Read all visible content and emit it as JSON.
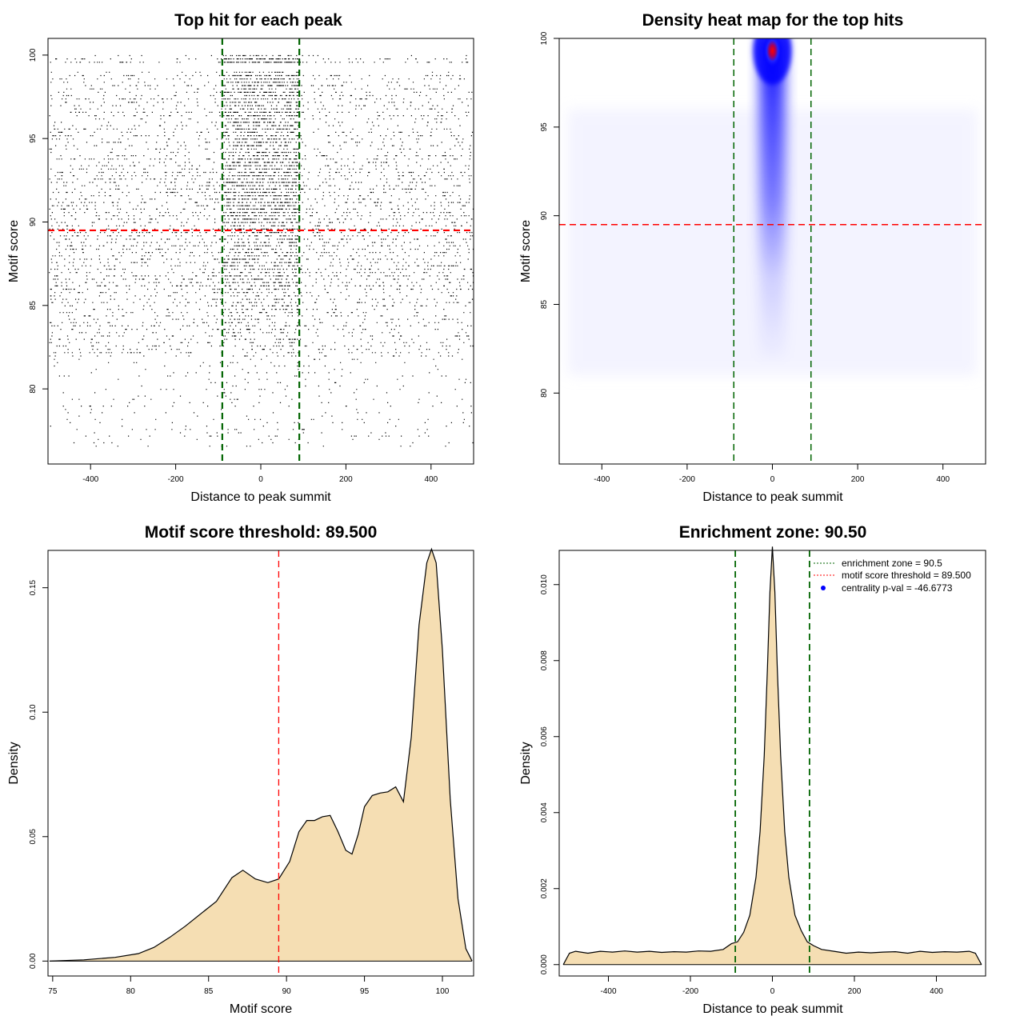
{
  "chart_data": [
    {
      "type": "scatter",
      "title": "Top hit for each peak",
      "xlabel": "Distance to peak summit",
      "ylabel": "Motif score",
      "xlim": [
        -500,
        500
      ],
      "ylim": [
        75.5,
        101
      ],
      "xticks": [
        -400,
        -200,
        0,
        200,
        400
      ],
      "yticks": [
        80,
        85,
        90,
        95,
        100
      ],
      "hlines": [
        {
          "y": 89.5,
          "color": "#ff0000",
          "style": "dashed"
        }
      ],
      "vlines": [
        {
          "x": -90.5,
          "color": "#006400",
          "style": "dashed"
        },
        {
          "x": 90.5,
          "color": "#006400",
          "style": "dashed"
        }
      ],
      "point_density_profile": {
        "score_bands": [
          {
            "range": [
              99.5,
              100
            ],
            "weight": 1.0,
            "central_share": 0.55
          },
          {
            "range": [
              97.5,
              99
            ],
            "weight": 0.8,
            "central_share": 0.5
          },
          {
            "range": [
              94,
              97.5
            ],
            "weight": 0.7,
            "central_share": 0.45
          },
          {
            "range": [
              90,
              94
            ],
            "weight": 0.9,
            "central_share": 0.4
          },
          {
            "range": [
              86,
              90
            ],
            "weight": 0.85,
            "central_share": 0.25
          },
          {
            "range": [
              82,
              86
            ],
            "weight": 0.5,
            "central_share": 0.15
          },
          {
            "range": [
              76.5,
              82
            ],
            "weight": 0.12,
            "central_share": 0.1
          }
        ]
      },
      "point_count": 8000
    },
    {
      "type": "heatmap",
      "title": "Density heat map for the top hits",
      "xlabel": "Distance to peak summit",
      "ylabel": "Motif score",
      "xlim": [
        -500,
        500
      ],
      "ylim": [
        76,
        100
      ],
      "xticks": [
        -400,
        -200,
        0,
        200,
        400
      ],
      "yticks": [
        80,
        85,
        90,
        95,
        100
      ],
      "hlines": [
        {
          "y": 89.5,
          "color": "#ff0000",
          "style": "dashed"
        }
      ],
      "vlines": [
        {
          "x": -90.5,
          "color": "#006400",
          "style": "dashed"
        },
        {
          "x": 90.5,
          "color": "#006400",
          "style": "dashed"
        }
      ],
      "hotspot": {
        "x": 0,
        "y": 99.3,
        "color": "#ff0000"
      },
      "colors": [
        "#ffffff",
        "#0000ff",
        "#ff0000"
      ]
    },
    {
      "type": "area",
      "title": "Motif score threshold: 89.500",
      "xlabel": "Motif score",
      "ylabel": "Density",
      "xlim": [
        74.7,
        102
      ],
      "ylim": [
        -0.006,
        0.165
      ],
      "xticks": [
        75,
        80,
        85,
        90,
        95,
        100
      ],
      "yticks": [
        0.0,
        0.05,
        0.1,
        0.15
      ],
      "ytick_labels": [
        "0.00",
        "0.05",
        "0.10",
        "0.15"
      ],
      "fill": "#f5deb3",
      "vlines": [
        {
          "x": 89.5,
          "color": "#ff0000",
          "style": "dashed"
        }
      ],
      "x": [
        74.8,
        77,
        79,
        80.5,
        81.5,
        82.5,
        83.5,
        84.5,
        85.5,
        86.5,
        87.2,
        88,
        88.8,
        89.5,
        90.2,
        90.8,
        91.3,
        91.8,
        92.3,
        92.8,
        93.3,
        93.8,
        94.2,
        94.6,
        95,
        95.5,
        96,
        96.5,
        97,
        97.5,
        98,
        98.5,
        99,
        99.3,
        99.6,
        100,
        100.5,
        101,
        101.5,
        101.9
      ],
      "y": [
        0.0,
        0.0005,
        0.0015,
        0.003,
        0.0055,
        0.0095,
        0.014,
        0.019,
        0.024,
        0.0335,
        0.0365,
        0.033,
        0.0315,
        0.033,
        0.04,
        0.052,
        0.0565,
        0.0565,
        0.058,
        0.0585,
        0.052,
        0.0445,
        0.043,
        0.051,
        0.062,
        0.0665,
        0.0675,
        0.068,
        0.07,
        0.064,
        0.09,
        0.135,
        0.16,
        0.1655,
        0.16,
        0.125,
        0.065,
        0.025,
        0.005,
        0.0
      ]
    },
    {
      "type": "area",
      "title": "Enrichment zone: 90.50",
      "xlabel": "Distance to peak summit",
      "ylabel": "Density",
      "xlim": [
        -520,
        520
      ],
      "ylim": [
        -0.0003,
        0.0109
      ],
      "xticks": [
        -400,
        -200,
        0,
        200,
        400
      ],
      "yticks": [
        0.0,
        0.002,
        0.004,
        0.006,
        0.008,
        0.01
      ],
      "ytick_labels": [
        "0.000",
        "0.002",
        "0.004",
        "0.006",
        "0.008",
        "0.010"
      ],
      "fill": "#f5deb3",
      "vlines": [
        {
          "x": -90.5,
          "color": "#006400",
          "style": "dashed"
        },
        {
          "x": 90.5,
          "color": "#006400",
          "style": "dashed"
        }
      ],
      "x": [
        -510,
        -495,
        -480,
        -450,
        -420,
        -390,
        -360,
        -330,
        -300,
        -270,
        -240,
        -210,
        -180,
        -150,
        -120,
        -100,
        -85,
        -70,
        -55,
        -40,
        -30,
        -20,
        -12,
        -6,
        0,
        6,
        12,
        20,
        30,
        40,
        55,
        70,
        85,
        100,
        120,
        150,
        180,
        210,
        240,
        270,
        300,
        330,
        360,
        390,
        420,
        450,
        480,
        495,
        510
      ],
      "y": [
        0.0,
        0.0003,
        0.00035,
        0.0003,
        0.00035,
        0.00033,
        0.00036,
        0.00033,
        0.00035,
        0.00032,
        0.00034,
        0.00033,
        0.00036,
        0.00035,
        0.0004,
        0.00055,
        0.0006,
        0.00085,
        0.0013,
        0.0023,
        0.0035,
        0.0055,
        0.0078,
        0.0098,
        0.011,
        0.0098,
        0.0078,
        0.0055,
        0.0035,
        0.0023,
        0.0013,
        0.0009,
        0.0006,
        0.0005,
        0.0004,
        0.00035,
        0.0003,
        0.00033,
        0.00031,
        0.00033,
        0.00034,
        0.0003,
        0.00035,
        0.00032,
        0.00034,
        0.00033,
        0.00035,
        0.0003,
        0.0
      ],
      "legend": {
        "placement": "top-right",
        "entries": [
          {
            "label": "enrichment zone = 90.5",
            "color": "#006400",
            "style": "dotted"
          },
          {
            "label": "motif score threshold = 89.500",
            "color": "#ff0000",
            "style": "dotted"
          },
          {
            "label": "centrality p-val = -46.6773",
            "color": "#0000ff",
            "style": "point"
          }
        ]
      }
    }
  ]
}
